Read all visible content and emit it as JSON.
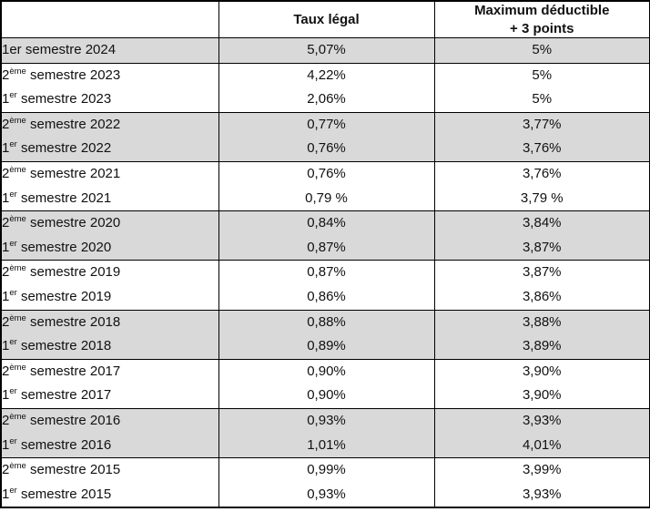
{
  "table": {
    "header": {
      "period_label": "",
      "taux_legal": "Taux légal",
      "max_deductible_line1": "Maximum déductible",
      "max_deductible_line2": "+ 3 points"
    },
    "colors": {
      "shaded_row_background": "#d9d9d9",
      "row_background": "#ffffff",
      "border": "#000000",
      "text": "#111111"
    },
    "groups": [
      {
        "shaded": true,
        "rows": [
          {
            "num": "1er",
            "sup": "",
            "rest": "semestre 2024",
            "taux": "5,07%",
            "max": "5%"
          }
        ]
      },
      {
        "shaded": false,
        "rows": [
          {
            "num": "2",
            "sup": "ème",
            "rest": "semestre 2023",
            "taux": "4,22%",
            "max": "5%"
          },
          {
            "num": "1",
            "sup": "er",
            "rest": "semestre 2023",
            "taux": "2,06%",
            "max": "5%"
          }
        ]
      },
      {
        "shaded": true,
        "rows": [
          {
            "num": "2",
            "sup": "ème",
            "rest": "semestre 2022",
            "taux": "0,77%",
            "max": "3,77%"
          },
          {
            "num": "1",
            "sup": "er",
            "rest": "semestre 2022",
            "taux": "0,76%",
            "max": "3,76%"
          }
        ]
      },
      {
        "shaded": false,
        "rows": [
          {
            "num": "2",
            "sup": "ème",
            "rest": "semestre 2021",
            "taux": "0,76%",
            "max": "3,76%"
          },
          {
            "num": "1",
            "sup": "er",
            "rest": "semestre 2021",
            "taux": "0,79 %",
            "max": "3,79 %"
          }
        ]
      },
      {
        "shaded": true,
        "rows": [
          {
            "num": "2",
            "sup": "ème",
            "rest": "semestre 2020",
            "taux": "0,84%",
            "max": "3,84%"
          },
          {
            "num": "1",
            "sup": "er",
            "rest": "semestre 2020",
            "taux": "0,87%",
            "max": "3,87%"
          }
        ]
      },
      {
        "shaded": false,
        "rows": [
          {
            "num": "2",
            "sup": "ème",
            "rest": "semestre 2019",
            "taux": "0,87%",
            "max": "3,87%"
          },
          {
            "num": "1",
            "sup": "er",
            "rest": "semestre 2019",
            "taux": "0,86%",
            "max": "3,86%"
          }
        ]
      },
      {
        "shaded": true,
        "rows": [
          {
            "num": "2",
            "sup": "ème",
            "rest": "semestre 2018",
            "taux": "0,88%",
            "max": "3,88%"
          },
          {
            "num": "1",
            "sup": "er",
            "rest": "semestre 2018",
            "taux": "0,89%",
            "max": "3,89%"
          }
        ]
      },
      {
        "shaded": false,
        "rows": [
          {
            "num": "2",
            "sup": "ème",
            "rest": "semestre 2017",
            "taux": "0,90%",
            "max": "3,90%"
          },
          {
            "num": "1",
            "sup": "er",
            "rest": "semestre 2017",
            "taux": "0,90%",
            "max": "3,90%"
          }
        ]
      },
      {
        "shaded": true,
        "rows": [
          {
            "num": "2",
            "sup": "ème",
            "rest": "semestre 2016",
            "taux": "0,93%",
            "max": "3,93%"
          },
          {
            "num": "1",
            "sup": "er",
            "rest": "semestre 2016",
            "taux": "1,01%",
            "max": "4,01%"
          }
        ]
      },
      {
        "shaded": false,
        "rows": [
          {
            "num": "2",
            "sup": "ème",
            "rest": "semestre 2015",
            "taux": "0,99%",
            "max": "3,99%"
          },
          {
            "num": "1",
            "sup": "er",
            "rest": "semestre 2015",
            "taux": "0,93%",
            "max": "3,93%"
          }
        ]
      }
    ]
  }
}
